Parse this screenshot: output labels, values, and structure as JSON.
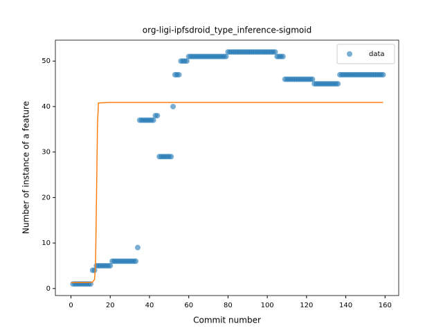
{
  "chart_data": {
    "type": "scatter",
    "title": "org-ligi-ipfsdroid_type_inference-sigmoid",
    "xlabel": "Commit number",
    "ylabel": "Number of instance of a feature",
    "xlim": [
      -7.95,
      166.95
    ],
    "ylim": [
      -1.55,
      54.6
    ],
    "xticks": [
      0,
      20,
      40,
      60,
      80,
      100,
      120,
      140,
      160
    ],
    "yticks": [
      0,
      10,
      20,
      30,
      40,
      50
    ],
    "legend": "upper right",
    "series": [
      {
        "name": "data",
        "type": "scatter",
        "color": "#1f77b4",
        "x": [
          1,
          2,
          3,
          4,
          5,
          6,
          7,
          8,
          9,
          10,
          11,
          12,
          13,
          14,
          15,
          16,
          17,
          18,
          19,
          20,
          21,
          22,
          23,
          24,
          25,
          26,
          27,
          28,
          29,
          30,
          31,
          32,
          33,
          34,
          35,
          36,
          37,
          38,
          39,
          40,
          41,
          42,
          43,
          44,
          45,
          46,
          47,
          48,
          49,
          50,
          51,
          52,
          53,
          54,
          55,
          56,
          57,
          58,
          59,
          60,
          61,
          62,
          63,
          64,
          65,
          66,
          67,
          68,
          69,
          70,
          71,
          72,
          73,
          74,
          75,
          76,
          77,
          78,
          79,
          80,
          81,
          82,
          83,
          84,
          85,
          86,
          87,
          88,
          89,
          90,
          91,
          92,
          93,
          94,
          95,
          96,
          97,
          98,
          99,
          100,
          101,
          102,
          103,
          104,
          105,
          106,
          107,
          108,
          109,
          110,
          111,
          112,
          113,
          114,
          115,
          116,
          117,
          118,
          119,
          120,
          121,
          122,
          123,
          124,
          125,
          126,
          127,
          128,
          129,
          130,
          131,
          132,
          133,
          134,
          135,
          136,
          137,
          138,
          139,
          140,
          141,
          142,
          143,
          144,
          145,
          146,
          147,
          148,
          149,
          150,
          151,
          152,
          153,
          154,
          155,
          156,
          157,
          158,
          159
        ],
        "values": [
          1,
          1,
          1,
          1,
          1,
          1,
          1,
          1,
          1,
          1,
          4,
          4,
          5,
          5,
          5,
          5,
          5,
          5,
          5,
          5,
          6,
          6,
          6,
          6,
          6,
          6,
          6,
          6,
          6,
          6,
          6,
          6,
          6,
          9,
          37,
          37,
          37,
          37,
          37,
          37,
          37,
          37,
          38,
          38,
          29,
          29,
          29,
          29,
          29,
          29,
          29,
          40,
          47,
          47,
          47,
          50,
          50,
          50,
          50,
          51,
          51,
          51,
          51,
          51,
          51,
          51,
          51,
          51,
          51,
          51,
          51,
          51,
          51,
          51,
          51,
          51,
          51,
          51,
          51,
          52,
          52,
          52,
          52,
          52,
          52,
          52,
          52,
          52,
          52,
          52,
          52,
          52,
          52,
          52,
          52,
          52,
          52,
          52,
          52,
          52,
          52,
          52,
          52,
          52,
          51,
          51,
          51,
          51,
          46,
          46,
          46,
          46,
          46,
          46,
          46,
          46,
          46,
          46,
          46,
          46,
          46,
          46,
          46,
          45,
          45,
          45,
          45,
          45,
          45,
          45,
          45,
          45,
          45,
          45,
          45,
          45,
          47,
          47,
          47,
          47,
          47,
          47,
          47,
          47,
          47,
          47,
          47,
          47,
          47,
          47,
          47,
          47,
          47,
          47,
          47,
          47,
          47,
          47,
          47
        ]
      },
      {
        "type": "line",
        "color": "#ff7f0e",
        "x": [
          0,
          5,
          10,
          11,
          12,
          12.5,
          13,
          13.5,
          14,
          20,
          60,
          100,
          159
        ],
        "values": [
          1.3,
          1.3,
          1.3,
          1.4,
          2,
          5,
          20,
          36,
          40.8,
          40.9,
          40.9,
          40.9,
          40.9
        ]
      }
    ]
  }
}
